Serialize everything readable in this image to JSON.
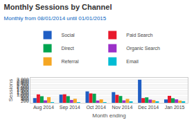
{
  "chart_data": {
    "type": "bar",
    "title": "Monthly Sessions by Channel",
    "subtitle": "Monthly from 08/01/2014 until 01/01/2015",
    "xlabel": "Month ending",
    "ylabel": "Sessions",
    "categories": [
      "Aug 2014",
      "Sep 2014",
      "Oct 2014",
      "Nov 2014",
      "Dec 2014",
      "Jan 2015"
    ],
    "series": [
      {
        "name": "Social",
        "color": "#1f5ec4",
        "values": [
          600,
          1050,
          1460,
          1360,
          2950,
          430
        ]
      },
      {
        "name": "Paid Search",
        "color": "#e8192c",
        "values": [
          1080,
          1090,
          1200,
          1020,
          600,
          890
        ]
      },
      {
        "name": "Direct",
        "color": "#00a550",
        "values": [
          840,
          850,
          1160,
          870,
          690,
          580
        ]
      },
      {
        "name": "Organic Search",
        "color": "#9b30c8",
        "values": [
          310,
          360,
          290,
          310,
          410,
          440
        ]
      },
      {
        "name": "Referral",
        "color": "#f5a623",
        "values": [
          720,
          510,
          440,
          490,
          340,
          290
        ]
      },
      {
        "name": "Email",
        "color": "#00bcd4",
        "values": [
          10,
          5,
          15,
          120,
          190,
          195
        ]
      }
    ],
    "ylim": [
      0,
      3200
    ],
    "yticks": [
      200,
      400,
      600,
      800,
      {
        "value": 1000,
        "label": "1,000"
      },
      {
        "value": 1200,
        "label": "1,200"
      },
      {
        "value": 1400,
        "label": "1,400"
      },
      {
        "value": 1600,
        "label": "1,600"
      },
      {
        "value": 1800,
        "label": "1,800"
      },
      {
        "value": 2000,
        "label": "2,000"
      },
      {
        "value": 2200,
        "label": "2,200"
      },
      {
        "value": 2400,
        "label": "2,400"
      },
      {
        "value": 2600,
        "label": "2,600"
      },
      {
        "value": 2800,
        "label": "2,800"
      },
      {
        "value": 3000,
        "label": "3,000"
      }
    ],
    "grid": true,
    "legend": "upper left"
  }
}
